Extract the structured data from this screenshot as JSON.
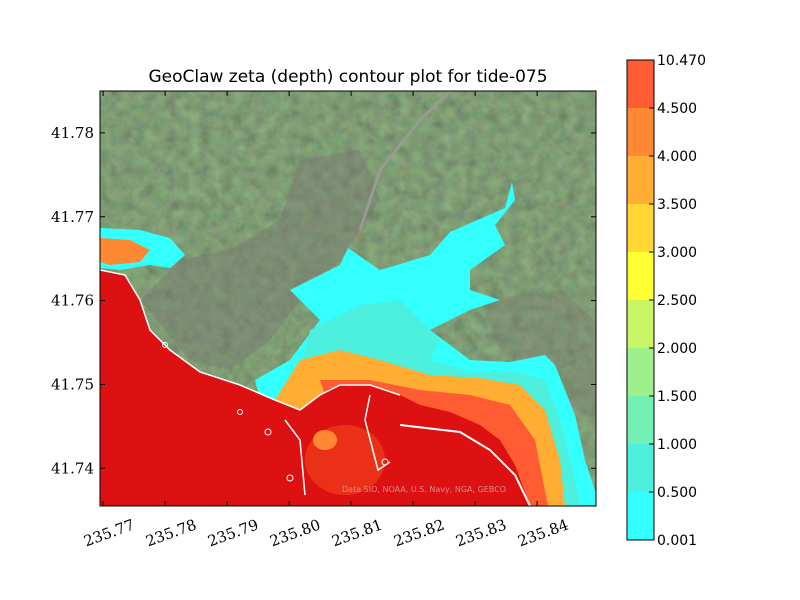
{
  "chart_data": {
    "type": "heatmap",
    "title": "GeoClaw zeta (depth) contour plot for tide-075",
    "xlabel": "",
    "ylabel": "",
    "xlim": [
      235.7695,
      235.8495
    ],
    "ylim": [
      41.7355,
      41.785
    ],
    "x_ticks": [
      "235.77",
      "235.78",
      "235.79",
      "235.80",
      "235.81",
      "235.82",
      "235.83",
      "235.84"
    ],
    "x_tick_values": [
      235.77,
      235.78,
      235.79,
      235.8,
      235.81,
      235.82,
      235.83,
      235.84
    ],
    "y_ticks": [
      "41.74",
      "41.75",
      "41.76",
      "41.77",
      "41.78"
    ],
    "y_tick_values": [
      41.74,
      41.75,
      41.76,
      41.77,
      41.78
    ],
    "colorbar": {
      "levels": [
        "0.001",
        "0.500",
        "1.000",
        "1.500",
        "2.000",
        "2.500",
        "3.000",
        "3.500",
        "4.000",
        "4.500",
        "10.470"
      ],
      "colors": [
        "#33ffff",
        "#4df0dc",
        "#73f0b4",
        "#9ef08c",
        "#c8f564",
        "#ffff33",
        "#ffd633",
        "#ffad33",
        "#ff8833",
        "#ff5c33"
      ]
    },
    "attribution": "Data SIO, NOAA, U.S. Navy, NGA, GEBCO",
    "grid": false,
    "legend": "colorbar-right"
  },
  "colors": {
    "ocean": "#dd1111",
    "land": "#3f5236",
    "coast_line": "#ffffff"
  }
}
